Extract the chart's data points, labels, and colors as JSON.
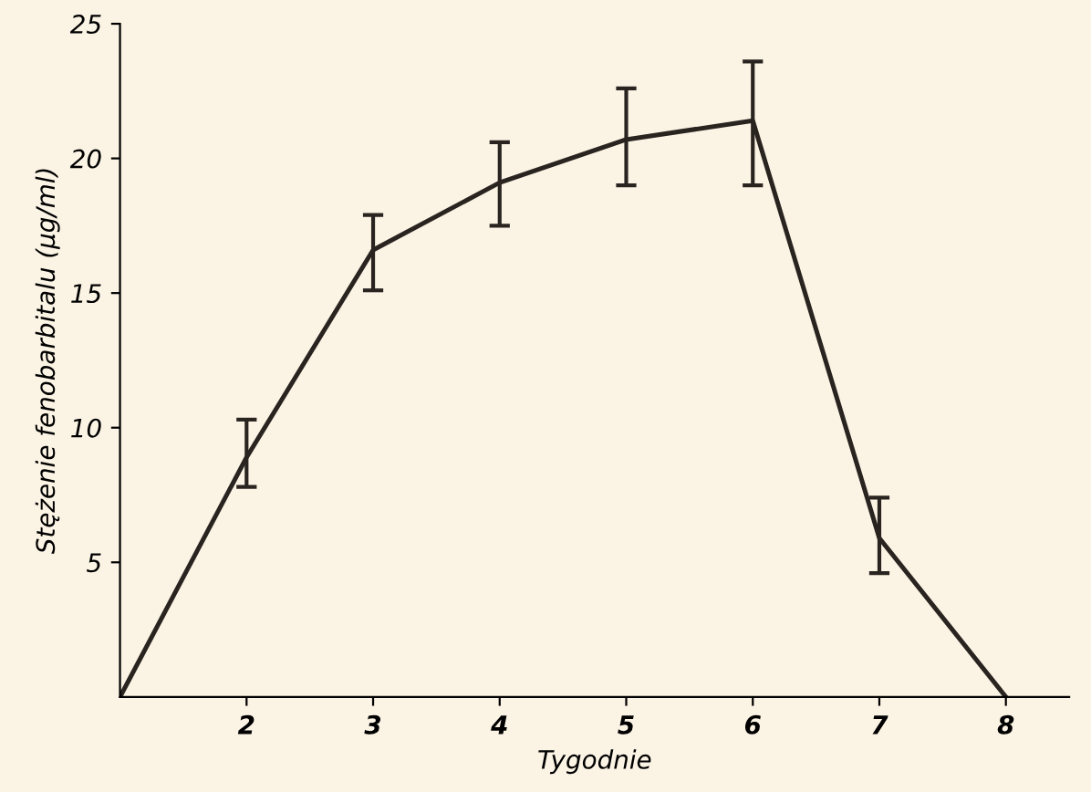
{
  "chart_data": {
    "type": "line",
    "xlabel": "Tygodnie",
    "ylabel": "Stężenie fenobarbitalu (µg/ml)",
    "x": [
      1,
      2,
      3,
      4,
      5,
      6,
      7,
      8
    ],
    "series": [
      {
        "color": "#2a2420",
        "values": [
          0,
          8.9,
          16.6,
          19.1,
          20.7,
          21.4,
          5.9,
          0
        ],
        "errors": [
          null,
          [
            7.8,
            10.3
          ],
          [
            15.1,
            17.9
          ],
          [
            17.5,
            20.6
          ],
          [
            19.0,
            22.6
          ],
          [
            19.0,
            23.6
          ],
          [
            4.6,
            7.4
          ],
          null
        ]
      }
    ],
    "xlim": [
      1,
      8.5
    ],
    "xticks": [
      2,
      3,
      4,
      5,
      6,
      7,
      8
    ],
    "ylim": [
      0,
      25
    ],
    "yticks": [
      5,
      10,
      15,
      20,
      25
    ],
    "grid": false,
    "legend": false,
    "marker": "none",
    "line_style": "solid"
  }
}
